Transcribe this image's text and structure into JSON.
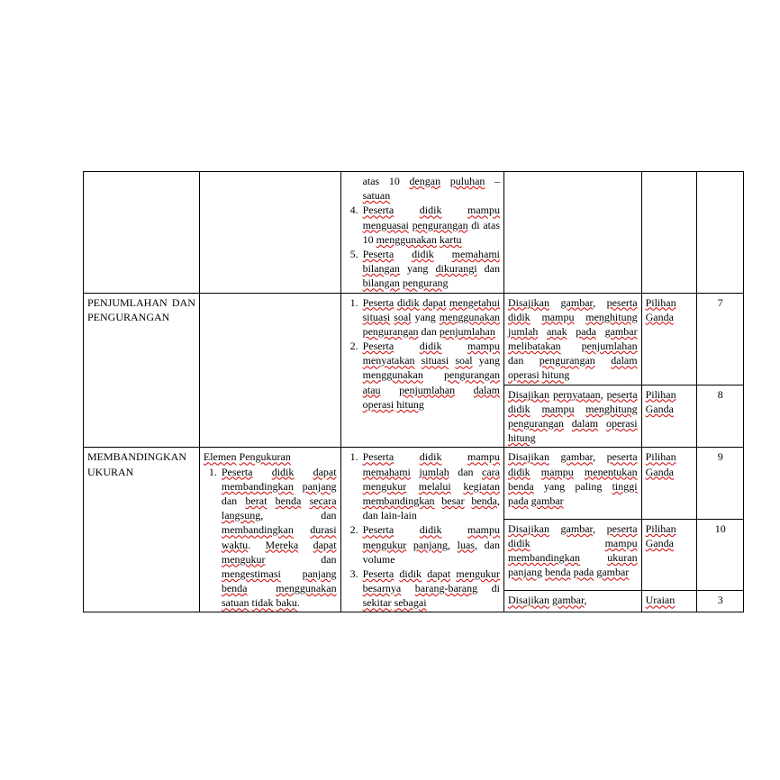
{
  "rows": [
    {
      "c1": "",
      "c2": "",
      "c3_html": "atas 10 <span class='sp'>dengan</span> <span class='sp'>puluhan</span> – <span class='sp'>satuan</span><|LI4|><span class='sp'>Peserta</span> <span class='sp'>didik</span> <span class='sp'>mampu</span> <span class='sp'>menguasai</span> <span class='sp'>pengurangan</span> di atas 10 <span class='sp'>menggunakan</span> <span class='sp'>kartu</span><|LI5|><span class='sp'>Peserta</span> <span class='sp'>didik</span> <span class='sp'>memahami</span> <span class='sp'>bilangan</span> yang <span class='sp'>dikurangi</span> dan <span class='sp'>bilangan</span> <span class='sp'>pengurang</span>",
      "c4": "",
      "c5": "",
      "c6": ""
    },
    {
      "c1": "PENJUMLAHAN DAN PENGURANGAN",
      "c2": "",
      "c3_html": "<|OL|><span class='sp'>Peserta</span> <span class='sp'>didik</span> <span class='sp'>dapat</span> <span class='sp'>mengetahui</span> <span class='sp'>situasi</span> <span class='sp'>soal</span> yang <span class='sp'>menggunakan</span> <span class='sp'>pengurangan</span> dan <span class='sp'>penjumlahan</span><|LI|><span class='sp'>Peserta</span> <span class='sp'>didik</span> <span class='sp'>mampu</span> <span class='sp'>menyatakan</span> <span class='sp'>situasi</span> <span class='sp'>soal</span> yang <span class='sp'>menggunakan</span> <span class='sp'>pengurangan</span> <span class='sp'>atau</span> <span class='sp'>penjumlahan</span> <span class='sp'>dalam</span> <span class='sp'>operasi</span> <span class='sp'>hitung</span><|EOL|>",
      "splits": [
        {
          "c4_html": "<span class='sp'>Disajikan</span> <span class='sp'>gambar</span>, <span class='sp'>peserta</span> <span class='sp'>didik</span> <span class='sp'>mampu</span> <span class='sp'>menghitung</span> <span class='sp'>jumlah</span> <span class='sp'>anak</span> <span class='sp'>pada</span> <span class='sp'>gambar</span> <span class='sp'>melibatakan</span> <span class='sp'>penjumlahan</span> dan <span class='sp'>pengurangan</span> <span class='sp'>dalam</span> <span class='sp'>operasi</span> <span class='sp'>hitung</span>",
          "c5_html": "<span class='sp'>Pilihan</span> <span class='sp'>Ganda</span>",
          "c6": "7"
        },
        {
          "c4_html": "<span class='sp'>Disajikan</span> <span class='sp'>pernyataan</span>, <span class='sp'>peserta</span> <span class='sp'>didik</span> <span class='sp'>mampu</span> <span class='sp'>menghitung</span> <span class='sp'>pengurangan</span> <span class='sp'>dalam</span> <span class='sp'>operasi</span> <span class='sp'>hitung</span>",
          "c5_html": "<span class='sp'>Pilihan</span> <span class='sp'>Ganda</span>",
          "c6": "8"
        }
      ]
    },
    {
      "c1": "MEMBANDINGKAN UKURAN",
      "c2_html": "<span class='sp'>Elemen</span> <span class='sp'>Pengukuran</span><|OL|><span class='sp'>Peserta</span> <span class='sp'>didik</span> <span class='sp'>dapat</span> <span class='sp'>membandingkan</span> <span class='sp'>panjang</span> dan <span class='sp'>berat</span> <span class='sp'>benda</span> <span class='sp'>secara</span> <span class='sp'>langsung</span>, dan <span class='sp'>membandingkan</span> <span class='sp'>durasi</span> <span class='sp'>waktu</span>. <span class='sp'>Mereka</span> <span class='sp'>dapat</span> <span class='sp'>mengukur</span> dan <span class='sp'>mengestimasi</span> <span class='sp'>panjang</span> <span class='sp'>benda</span> <span class='sp'>menggunakan</span> <span class='sp'>satuan</span> <span class='sp'>tidak</span> <span class='sp'>baku</span>.<|EOL|>",
      "c3_html": "<|OL|><span class='sp'>Peserta</span> <span class='sp'>didik</span> <span class='sp'>mampu</span> <span class='sp'>memahami</span> <span class='sp'>jumlah</span> dan <span class='sp'>cara</span> <span class='sp'>mengukur</span> <span class='sp'>melalui</span> <span class='sp'>kegiatan</span> <span class='sp'>membandingkan</span> <span class='sp'>besar</span> <span class='sp'>benda</span>, dan lain-lain<|LI|><span class='sp'>Peserta</span> <span class='sp'>didik</span> <span class='sp'>mampu</span> <span class='sp'>mengukur</span> <span class='sp'>panjang</span>, <span class='sp'>luas</span>, dan volume<|LI|><span class='sp'>Peserta</span> <span class='sp'>didik</span> <span class='sp'>dapat</span> <span class='sp'>mengukur</span> <span class='sp'>besarnya</span> <span class='sp'>barang-barang</span> di <span class='sp'>sekitar</span> <span class='sp'>sebagai</span><|EOL|>",
      "splits": [
        {
          "c4_html": "<span class='sp'>Disajikan</span> <span class='sp'>gambar</span>, <span class='sp'>peserta</span> <span class='sp'>didik</span> <span class='sp'>mampu</span> <span class='sp'>menentukan</span> <span class='sp'>benda</span> yang paling <span class='sp'>tinggi</span> <span class='sp'>pada</span> <span class='sp'>gambar</span>",
          "c5_html": "<span class='sp'>Pilihan</span> <span class='sp'>Ganda</span>",
          "c6": "9"
        },
        {
          "c4_html": "<span class='sp'>Disajikan</span> <span class='sp'>gambar</span>, <span class='sp'>peserta</span> <span class='sp'>didik</span> <span class='sp'>mampu</span> <span class='sp'>membandingkan</span> <span class='sp'>ukuran</span> <span class='sp'>panjang</span> <span class='sp'>benda</span> <span class='sp'>pada</span> <span class='sp'>gambar</span>",
          "c5_html": "<span class='sp'>Pilihan</span> <span class='sp'>Ganda</span>",
          "c6": "10"
        },
        {
          "c4_html": "<span class='sp'>Disajikan</span> <span class='sp'>gambar</span>,",
          "c5_html": "<span class='sp'>Uraian</span>",
          "c6": "3"
        }
      ]
    }
  ]
}
